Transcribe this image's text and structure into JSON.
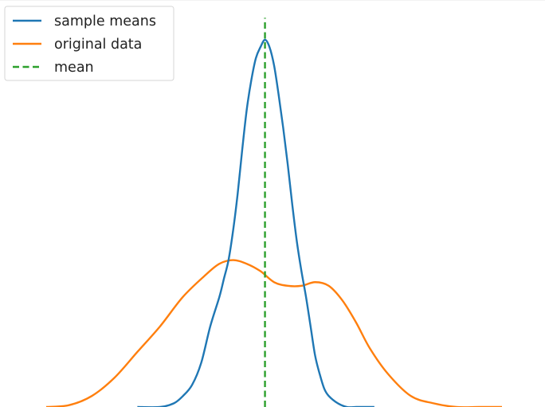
{
  "chart_data": {
    "type": "line",
    "title": "",
    "xlabel": "",
    "ylabel": "",
    "axes_visible": false,
    "grid": false,
    "legend_position": "top-left",
    "xlim": [
      0,
      100
    ],
    "ylim": [
      0,
      1.0
    ],
    "series": [
      {
        "name": "sample means",
        "color": "#1f77b4",
        "style": "solid",
        "x": [
          20,
          25,
          28,
          30,
          32,
          34,
          36,
          38,
          39,
          40,
          41,
          42,
          43,
          44,
          45,
          46,
          47,
          48,
          49,
          50,
          51,
          52,
          53,
          54,
          55,
          56,
          57,
          58,
          59,
          60,
          61,
          62,
          64,
          66,
          68,
          70,
          72
        ],
        "y": [
          0.0,
          0.0,
          0.01,
          0.03,
          0.06,
          0.12,
          0.22,
          0.3,
          0.35,
          0.4,
          0.48,
          0.58,
          0.7,
          0.81,
          0.89,
          0.95,
          0.98,
          1.0,
          0.98,
          0.93,
          0.85,
          0.76,
          0.66,
          0.55,
          0.45,
          0.37,
          0.3,
          0.22,
          0.14,
          0.09,
          0.05,
          0.03,
          0.01,
          0.0,
          0.0,
          0.0,
          0.0
        ]
      },
      {
        "name": "original data",
        "color": "#ff7f0e",
        "style": "solid",
        "x": [
          0,
          5,
          10,
          15,
          20,
          25,
          30,
          35,
          38,
          41,
          44,
          47,
          50,
          53,
          56,
          59,
          62,
          65,
          68,
          71,
          75,
          80,
          85,
          90,
          95,
          100
        ],
        "y": [
          0.0,
          0.005,
          0.03,
          0.08,
          0.15,
          0.22,
          0.3,
          0.36,
          0.39,
          0.4,
          0.39,
          0.37,
          0.34,
          0.33,
          0.33,
          0.34,
          0.33,
          0.29,
          0.23,
          0.16,
          0.09,
          0.03,
          0.01,
          0.0,
          0.0,
          0.0
        ]
      },
      {
        "name": "mean",
        "color": "#2ca02c",
        "style": "dashed",
        "x": [
          48,
          48
        ],
        "y": [
          0,
          1.06
        ]
      }
    ]
  }
}
